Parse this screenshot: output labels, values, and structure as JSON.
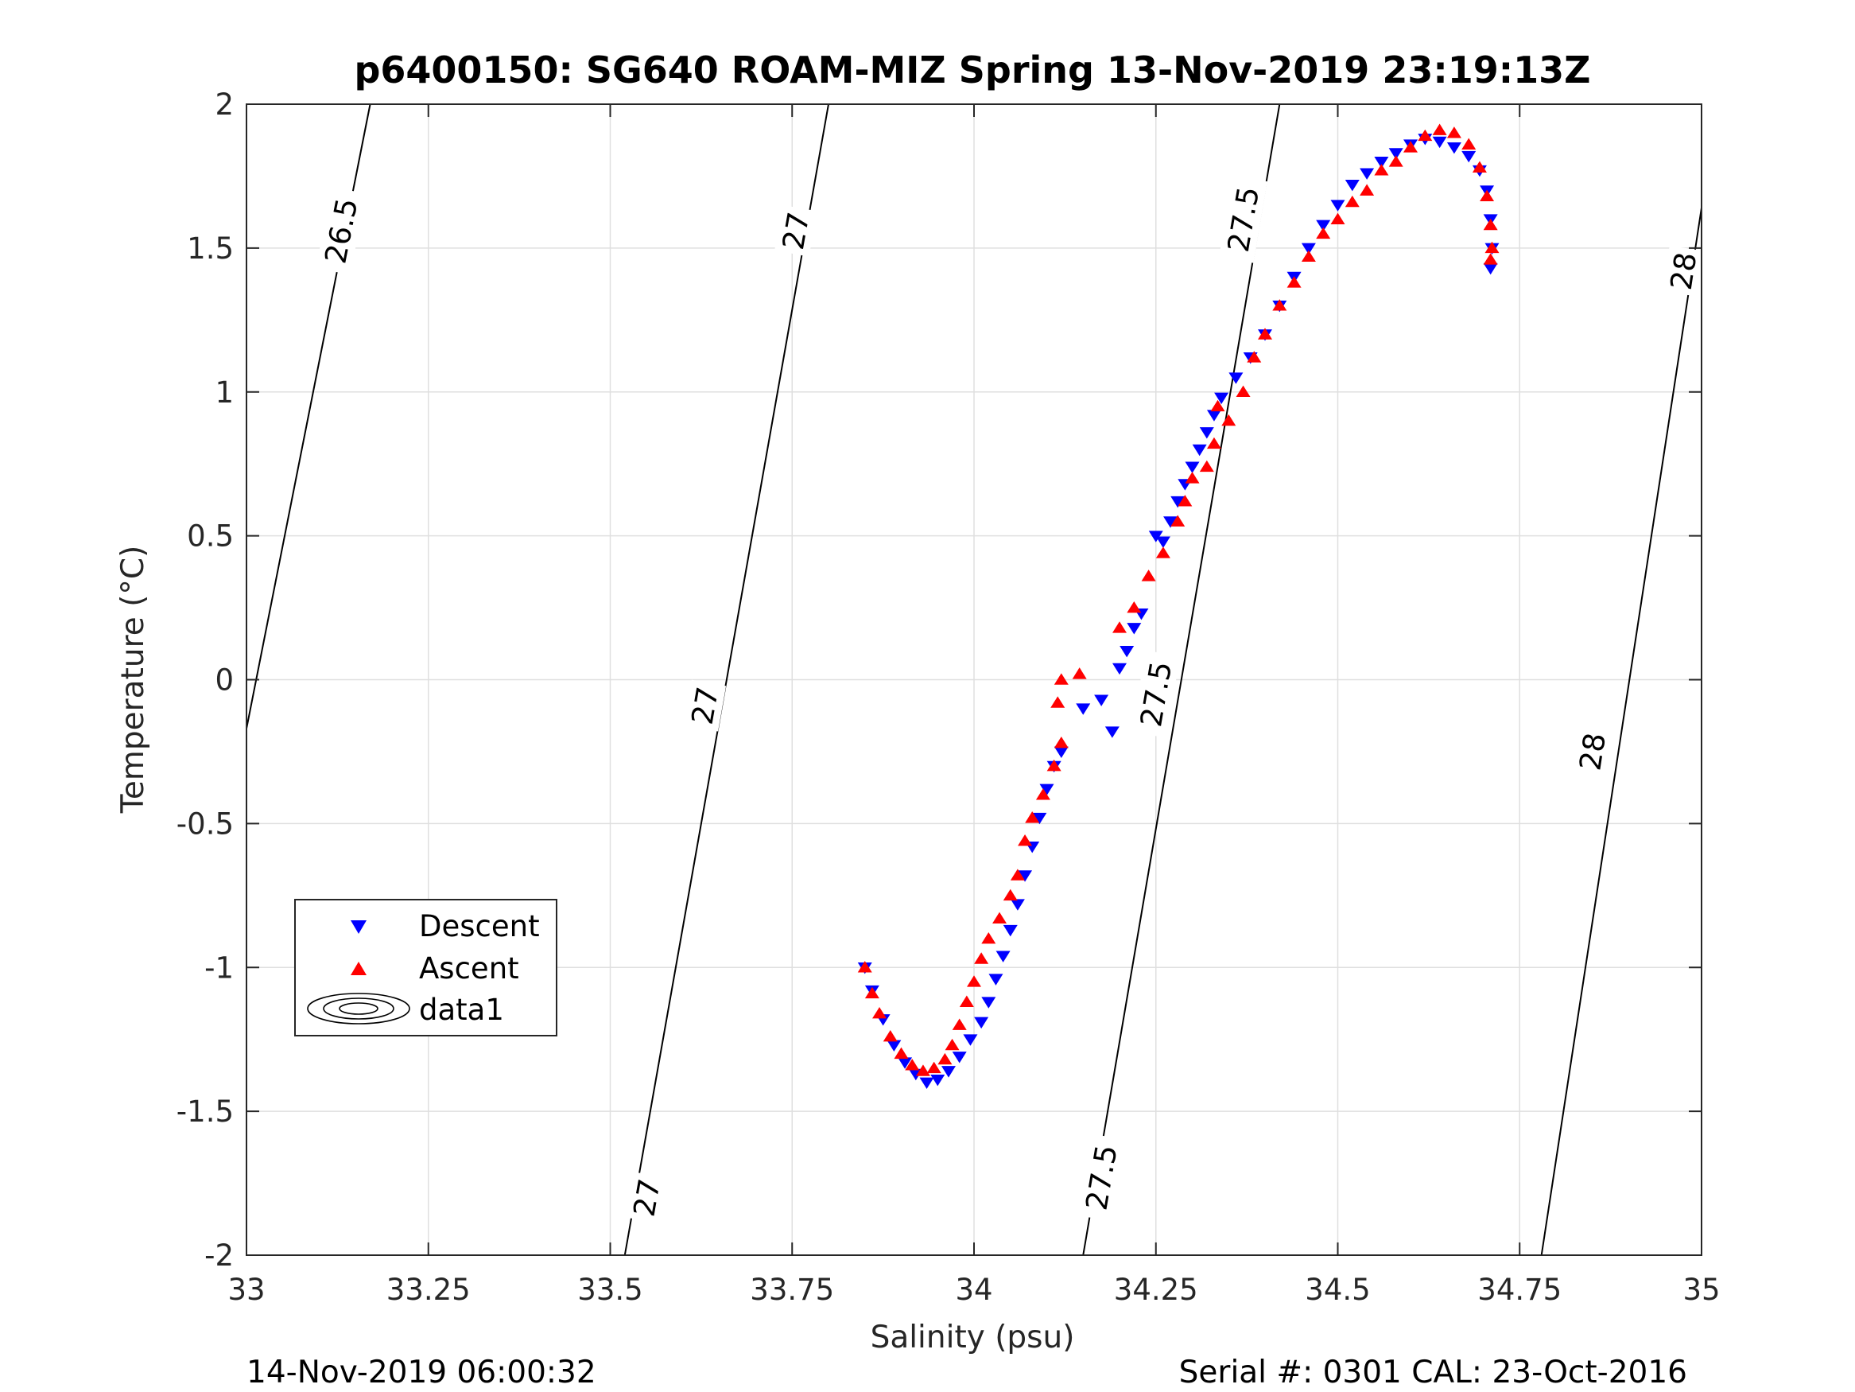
{
  "chart_data": {
    "type": "scatter",
    "title": "p6400150: SG640 ROAM-MIZ Spring 13-Nov-2019 23:19:13Z",
    "xlabel": "Salinity (psu)",
    "ylabel": "Temperature (°C)",
    "xlim": [
      33,
      35
    ],
    "ylim": [
      -2,
      2
    ],
    "xticks": [
      33,
      33.25,
      33.5,
      33.75,
      34,
      34.25,
      34.5,
      34.75,
      35
    ],
    "xtick_labels": [
      "33",
      "33.25",
      "33.5",
      "33.75",
      "34",
      "34.25",
      "34.5",
      "34.75",
      "35"
    ],
    "yticks": [
      -2,
      -1.5,
      -1,
      -0.5,
      0,
      0.5,
      1,
      1.5,
      2
    ],
    "ytick_labels": [
      "-2",
      "-1.5",
      "-1",
      "-0.5",
      "0",
      "0.5",
      "1",
      "1.5",
      "2"
    ],
    "grid": true,
    "legend": {
      "location": "lower-left",
      "entries": [
        "Descent",
        "Ascent",
        "data1"
      ]
    },
    "series": [
      {
        "name": "Descent",
        "color": "#0000ff",
        "marker": "triangle-down",
        "points": [
          [
            33.85,
            -1.0
          ],
          [
            33.86,
            -1.08
          ],
          [
            33.875,
            -1.18
          ],
          [
            33.89,
            -1.27
          ],
          [
            33.905,
            -1.33
          ],
          [
            33.92,
            -1.37
          ],
          [
            33.935,
            -1.4
          ],
          [
            33.95,
            -1.39
          ],
          [
            33.965,
            -1.36
          ],
          [
            33.98,
            -1.31
          ],
          [
            33.995,
            -1.25
          ],
          [
            34.01,
            -1.19
          ],
          [
            34.02,
            -1.12
          ],
          [
            34.03,
            -1.04
          ],
          [
            34.04,
            -0.96
          ],
          [
            34.05,
            -0.87
          ],
          [
            34.06,
            -0.78
          ],
          [
            34.07,
            -0.68
          ],
          [
            34.08,
            -0.58
          ],
          [
            34.09,
            -0.48
          ],
          [
            34.1,
            -0.38
          ],
          [
            34.11,
            -0.3
          ],
          [
            34.12,
            -0.25
          ],
          [
            34.15,
            -0.1
          ],
          [
            34.175,
            -0.07
          ],
          [
            34.19,
            -0.18
          ],
          [
            34.2,
            0.04
          ],
          [
            34.21,
            0.1
          ],
          [
            34.22,
            0.18
          ],
          [
            34.23,
            0.23
          ],
          [
            34.25,
            0.5
          ],
          [
            34.26,
            0.48
          ],
          [
            34.27,
            0.55
          ],
          [
            34.28,
            0.62
          ],
          [
            34.29,
            0.68
          ],
          [
            34.3,
            0.74
          ],
          [
            34.31,
            0.8
          ],
          [
            34.32,
            0.86
          ],
          [
            34.33,
            0.92
          ],
          [
            34.34,
            0.98
          ],
          [
            34.36,
            1.05
          ],
          [
            34.38,
            1.12
          ],
          [
            34.4,
            1.2
          ],
          [
            34.42,
            1.3
          ],
          [
            34.44,
            1.4
          ],
          [
            34.46,
            1.5
          ],
          [
            34.48,
            1.58
          ],
          [
            34.5,
            1.65
          ],
          [
            34.52,
            1.72
          ],
          [
            34.54,
            1.76
          ],
          [
            34.56,
            1.8
          ],
          [
            34.58,
            1.83
          ],
          [
            34.6,
            1.86
          ],
          [
            34.62,
            1.88
          ],
          [
            34.64,
            1.87
          ],
          [
            34.66,
            1.85
          ],
          [
            34.68,
            1.82
          ],
          [
            34.695,
            1.77
          ],
          [
            34.705,
            1.7
          ],
          [
            34.71,
            1.6
          ],
          [
            34.712,
            1.5
          ],
          [
            34.71,
            1.43
          ]
        ]
      },
      {
        "name": "Ascent",
        "color": "#ff0000",
        "marker": "triangle-up",
        "points": [
          [
            33.85,
            -1.0
          ],
          [
            33.86,
            -1.09
          ],
          [
            33.87,
            -1.16
          ],
          [
            33.885,
            -1.24
          ],
          [
            33.9,
            -1.3
          ],
          [
            33.915,
            -1.34
          ],
          [
            33.93,
            -1.36
          ],
          [
            33.945,
            -1.35
          ],
          [
            33.96,
            -1.32
          ],
          [
            33.97,
            -1.27
          ],
          [
            33.98,
            -1.2
          ],
          [
            33.99,
            -1.12
          ],
          [
            34.0,
            -1.05
          ],
          [
            34.01,
            -0.97
          ],
          [
            34.02,
            -0.9
          ],
          [
            34.035,
            -0.83
          ],
          [
            34.05,
            -0.75
          ],
          [
            34.06,
            -0.68
          ],
          [
            34.07,
            -0.56
          ],
          [
            34.08,
            -0.48
          ],
          [
            34.095,
            -0.4
          ],
          [
            34.11,
            -0.3
          ],
          [
            34.12,
            -0.22
          ],
          [
            34.115,
            -0.08
          ],
          [
            34.12,
            0.0
          ],
          [
            34.145,
            0.02
          ],
          [
            34.2,
            0.18
          ],
          [
            34.22,
            0.25
          ],
          [
            34.24,
            0.36
          ],
          [
            34.26,
            0.44
          ],
          [
            34.28,
            0.55
          ],
          [
            34.29,
            0.62
          ],
          [
            34.3,
            0.7
          ],
          [
            34.32,
            0.74
          ],
          [
            34.33,
            0.82
          ],
          [
            34.335,
            0.95
          ],
          [
            34.35,
            0.9
          ],
          [
            34.37,
            1.0
          ],
          [
            34.385,
            1.12
          ],
          [
            34.4,
            1.2
          ],
          [
            34.42,
            1.3
          ],
          [
            34.44,
            1.38
          ],
          [
            34.46,
            1.47
          ],
          [
            34.48,
            1.55
          ],
          [
            34.5,
            1.6
          ],
          [
            34.52,
            1.66
          ],
          [
            34.54,
            1.7
          ],
          [
            34.56,
            1.77
          ],
          [
            34.58,
            1.8
          ],
          [
            34.6,
            1.85
          ],
          [
            34.62,
            1.89
          ],
          [
            34.64,
            1.91
          ],
          [
            34.66,
            1.9
          ],
          [
            34.68,
            1.86
          ],
          [
            34.695,
            1.78
          ],
          [
            34.705,
            1.68
          ],
          [
            34.71,
            1.58
          ],
          [
            34.712,
            1.5
          ],
          [
            34.71,
            1.46
          ]
        ]
      }
    ],
    "contours": {
      "series_name": "data1",
      "color": "#000000",
      "levels": [
        {
          "value": 26.5,
          "line": [
            [
              33.0,
              -0.17
            ],
            [
              33.17,
              2.0
            ]
          ],
          "labels": [
            {
              "text": "26.5",
              "at": [
                33.13,
                1.56
              ]
            }
          ]
        },
        {
          "value": 27,
          "line": [
            [
              33.52,
              -2.0
            ],
            [
              33.8,
              2.0
            ]
          ],
          "labels": [
            {
              "text": "27",
              "at": [
                33.55,
                -1.8
              ]
            },
            {
              "text": "27",
              "at": [
                33.63,
                -0.09
              ]
            },
            {
              "text": "27",
              "at": [
                33.755,
                1.56
              ]
            }
          ]
        },
        {
          "value": 27.5,
          "line": [
            [
              34.15,
              -2.0
            ],
            [
              34.42,
              2.0
            ]
          ],
          "labels": [
            {
              "text": "27.5",
              "at": [
                34.175,
                -1.73
              ]
            },
            {
              "text": "27.5",
              "at": [
                34.25,
                -0.05
              ]
            },
            {
              "text": "27.5",
              "at": [
                34.37,
                1.6
              ]
            }
          ]
        },
        {
          "value": 28,
          "line": [
            [
              34.78,
              -2.0
            ],
            [
              35.0,
              1.64
            ]
          ],
          "labels": [
            {
              "text": "28",
              "at": [
                34.85,
                -0.25
              ]
            },
            {
              "text": "28",
              "at": [
                34.975,
                1.42
              ]
            }
          ]
        }
      ]
    }
  },
  "footer": {
    "left": "14-Nov-2019 06:00:32",
    "right": "Serial #: 0301  CAL: 23-Oct-2016"
  }
}
